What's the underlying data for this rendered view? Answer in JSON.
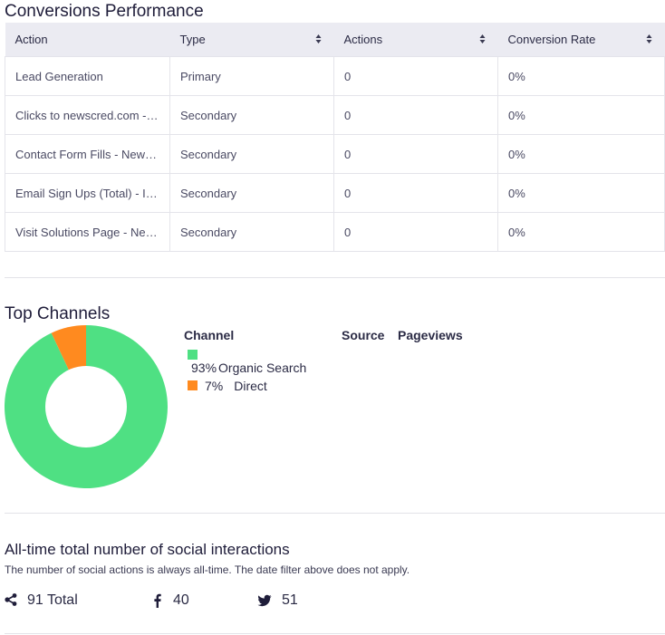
{
  "conversions": {
    "title": "Conversions Performance",
    "columns": [
      "Action",
      "Type",
      "Actions",
      "Conversion Rate"
    ],
    "rows": [
      [
        "Lead Generation",
        "Primary",
        "0",
        "0%"
      ],
      [
        "Clicks to newscred.com - I...",
        "Secondary",
        "0",
        "0%"
      ],
      [
        "Contact Form Fills - News...",
        "Secondary",
        "0",
        "0%"
      ],
      [
        "Email Sign Ups (Total) - Ins...",
        "Secondary",
        "0",
        "0%"
      ],
      [
        "Visit Solutions Page - New...",
        "Secondary",
        "0",
        "0%"
      ]
    ]
  },
  "channels": {
    "title": "Top Channels",
    "headers": {
      "channel": "Channel",
      "source": "Source",
      "pageviews": "Pageviews"
    },
    "items": [
      {
        "percent": "93%",
        "label": "Organic Search",
        "color": "#4fe083"
      },
      {
        "percent": "7%",
        "label": "Direct",
        "color": "#ff8a1f"
      }
    ],
    "chart_data": {
      "type": "pie",
      "categories": [
        "Organic Search",
        "Direct"
      ],
      "values": [
        93,
        7
      ]
    }
  },
  "social": {
    "title": "All-time total number of social interactions",
    "description": "The number of social actions is always all-time. The date filter above does not apply.",
    "total_value": "91",
    "total_label": "Total",
    "facebook_value": "40",
    "twitter_value": "51"
  }
}
